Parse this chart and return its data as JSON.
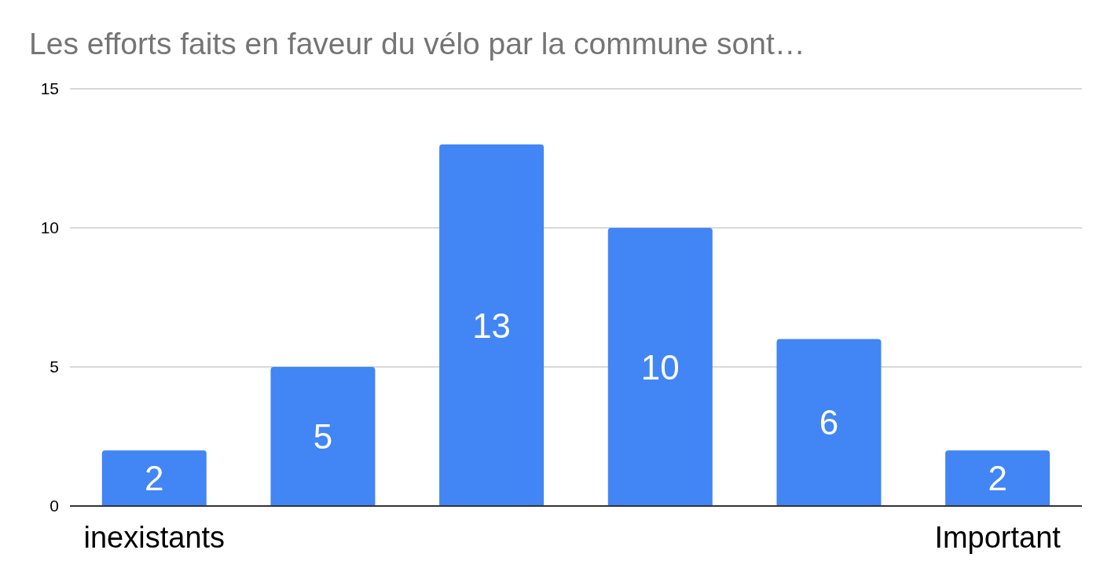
{
  "chart_data": {
    "type": "bar",
    "title": "Les efforts faits en faveur du vélo par la commune sont…",
    "categories": [
      "inexistants",
      null,
      null,
      null,
      null,
      "Important"
    ],
    "values": [
      2,
      5,
      13,
      10,
      6,
      2
    ],
    "color": "#4285f4",
    "ylim": [
      0,
      15
    ],
    "yticks": [
      0,
      5,
      10,
      15
    ],
    "grid": "y",
    "data_labels": true
  }
}
